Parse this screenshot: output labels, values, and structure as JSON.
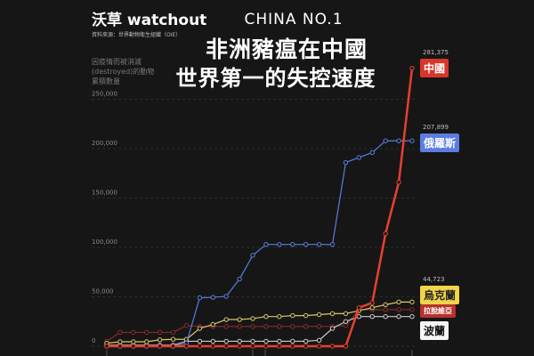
{
  "header": {
    "logo": "沃草 watchout",
    "source": "資料來源：世界動物衛生組織（OIE）",
    "subtitle": "CHINA NO.1",
    "title_line1": "非洲豬瘟在中國",
    "title_line2": "世界第一的失控速度"
  },
  "chart_data": {
    "type": "line",
    "title": "非洲豬瘟在中國 世界第一的失控速度",
    "ylabel": "因疫情而被消滅(destroyed)的動物累積數量",
    "ylim": [
      0,
      250000
    ],
    "yticks": [
      0,
      50000,
      100000,
      150000,
      200000,
      250000
    ],
    "ytick_labels": [
      "0",
      "50,000",
      "100,000",
      "150,000",
      "200,000",
      "250,000"
    ],
    "x": [
      1,
      2,
      3,
      4,
      5,
      6,
      7,
      8,
      9,
      10,
      11,
      12,
      13,
      14,
      15,
      16,
      17,
      18,
      19,
      20,
      21,
      22,
      23,
      24
    ],
    "grid": true,
    "series": [
      {
        "name": "俄羅斯",
        "color": "#5b7de0",
        "final_label": "207,899",
        "values": [
          0,
          0,
          0,
          0,
          0,
          0,
          3000,
          49000,
          49500,
          50500,
          68000,
          92000,
          103000,
          103000,
          103000,
          103000,
          103000,
          103000,
          186000,
          191000,
          196000,
          207899,
          207899,
          207899
        ]
      },
      {
        "name": "烏克蘭",
        "color": "#d9c66a",
        "final_label": "44,723",
        "values": [
          3000,
          4500,
          4500,
          4500,
          6500,
          7000,
          7000,
          18000,
          22000,
          27000,
          27000,
          28000,
          30000,
          30000,
          31000,
          31000,
          32000,
          33000,
          33000,
          36000,
          39000,
          42000,
          44723,
          44723
        ]
      },
      {
        "name": "拉脫維亞",
        "color": "#8a2a2a",
        "final_label": "",
        "values": [
          5000,
          14000,
          14000,
          14000,
          14000,
          14000,
          21000,
          20000,
          20000,
          20000,
          20000,
          20000,
          20000,
          20000,
          20000,
          20000,
          20000,
          20000,
          21000,
          37000,
          37000,
          37000,
          37000,
          37000
        ]
      },
      {
        "name": "波蘭",
        "color": "#cccccc",
        "final_label": "",
        "values": [
          1000,
          1000,
          1000,
          1000,
          1000,
          1000,
          5000,
          5000,
          5000,
          5000,
          5000,
          5000,
          5000,
          5000,
          5000,
          5000,
          6000,
          18000,
          25000,
          30000,
          30000,
          30000,
          30000,
          30000
        ]
      },
      {
        "name": "中國",
        "color": "#e8402e",
        "final_label": "281,375",
        "values": [
          0,
          0,
          0,
          0,
          0,
          0,
          0,
          0,
          0,
          0,
          0,
          0,
          0,
          0,
          0,
          0,
          0,
          0,
          0,
          39000,
          44000,
          114000,
          166000,
          281375
        ]
      }
    ]
  }
}
